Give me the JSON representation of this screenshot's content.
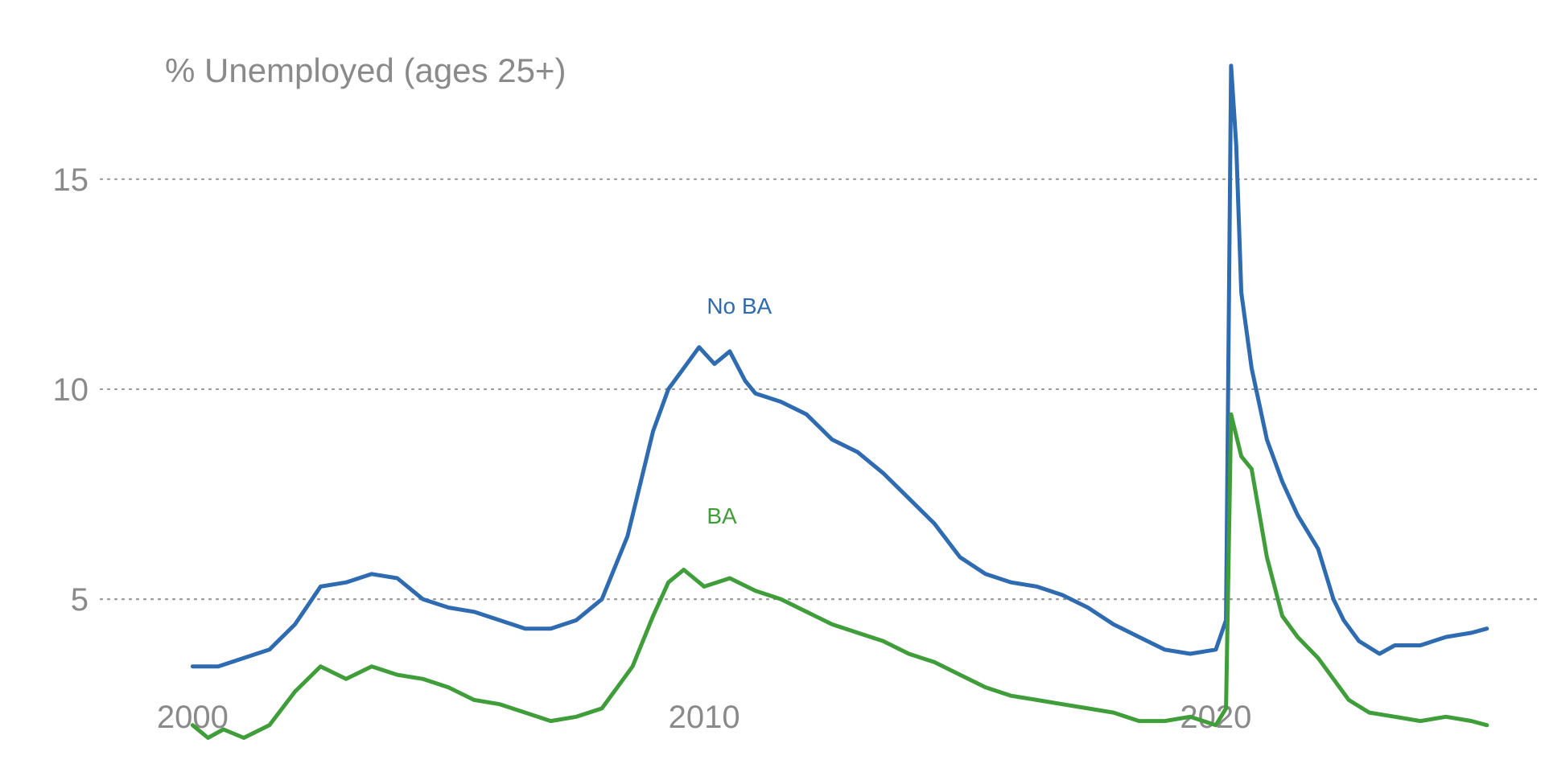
{
  "chart_data": {
    "type": "line",
    "title": "% Unemployed (ages 25+)",
    "xlabel": "",
    "ylabel": "",
    "xlim": [
      1998.2,
      2026.2
    ],
    "ylim": [
      2.8,
      18.5
    ],
    "x_ticks": [
      2000,
      2010,
      2020
    ],
    "y_ticks": [
      5,
      10,
      15
    ],
    "grid": "horizontal dotted",
    "legend": "inline labels",
    "colors": {
      "No BA": "#2e6bb0",
      "BA": "#3f9e3a"
    },
    "annotations": [
      {
        "text": "No BA",
        "series": "No BA"
      },
      {
        "text": "BA",
        "series": "BA"
      }
    ],
    "series": [
      {
        "name": "No BA",
        "color": "#2e6bb0",
        "points": [
          [
            2000.0,
            3.4
          ],
          [
            2000.5,
            3.4
          ],
          [
            2001.0,
            3.6
          ],
          [
            2001.5,
            3.8
          ],
          [
            2002.0,
            4.4
          ],
          [
            2002.5,
            5.3
          ],
          [
            2003.0,
            5.4
          ],
          [
            2003.5,
            5.6
          ],
          [
            2004.0,
            5.5
          ],
          [
            2004.5,
            5.0
          ],
          [
            2005.0,
            4.8
          ],
          [
            2005.5,
            4.7
          ],
          [
            2006.0,
            4.5
          ],
          [
            2006.5,
            4.3
          ],
          [
            2007.0,
            4.3
          ],
          [
            2007.5,
            4.5
          ],
          [
            2008.0,
            5.0
          ],
          [
            2008.5,
            6.5
          ],
          [
            2008.8,
            8.0
          ],
          [
            2009.0,
            9.0
          ],
          [
            2009.3,
            10.0
          ],
          [
            2009.6,
            10.5
          ],
          [
            2009.9,
            11.0
          ],
          [
            2010.2,
            10.6
          ],
          [
            2010.5,
            10.9
          ],
          [
            2010.8,
            10.2
          ],
          [
            2011.0,
            9.9
          ],
          [
            2011.5,
            9.7
          ],
          [
            2012.0,
            9.4
          ],
          [
            2012.5,
            8.8
          ],
          [
            2013.0,
            8.5
          ],
          [
            2013.5,
            8.0
          ],
          [
            2014.0,
            7.4
          ],
          [
            2014.5,
            6.8
          ],
          [
            2015.0,
            6.0
          ],
          [
            2015.5,
            5.6
          ],
          [
            2016.0,
            5.4
          ],
          [
            2016.5,
            5.3
          ],
          [
            2017.0,
            5.1
          ],
          [
            2017.5,
            4.8
          ],
          [
            2018.0,
            4.4
          ],
          [
            2018.5,
            4.1
          ],
          [
            2019.0,
            3.8
          ],
          [
            2019.5,
            3.7
          ],
          [
            2020.0,
            3.8
          ],
          [
            2020.2,
            4.5
          ],
          [
            2020.3,
            17.7
          ],
          [
            2020.4,
            15.8
          ],
          [
            2020.5,
            12.3
          ],
          [
            2020.7,
            10.5
          ],
          [
            2021.0,
            8.8
          ],
          [
            2021.3,
            7.8
          ],
          [
            2021.6,
            7.0
          ],
          [
            2022.0,
            6.2
          ],
          [
            2022.3,
            5.0
          ],
          [
            2022.5,
            4.5
          ],
          [
            2022.8,
            4.0
          ],
          [
            2023.2,
            3.7
          ],
          [
            2023.5,
            3.9
          ],
          [
            2024.0,
            3.9
          ],
          [
            2024.5,
            4.1
          ],
          [
            2025.0,
            4.2
          ],
          [
            2025.3,
            4.3
          ]
        ]
      },
      {
        "name": "BA",
        "color": "#3f9e3a",
        "points": [
          [
            2000.0,
            2.0
          ],
          [
            2000.3,
            1.7
          ],
          [
            2000.6,
            1.9
          ],
          [
            2001.0,
            1.7
          ],
          [
            2001.5,
            2.0
          ],
          [
            2002.0,
            2.8
          ],
          [
            2002.5,
            3.4
          ],
          [
            2003.0,
            3.1
          ],
          [
            2003.5,
            3.4
          ],
          [
            2004.0,
            3.2
          ],
          [
            2004.5,
            3.1
          ],
          [
            2005.0,
            2.9
          ],
          [
            2005.5,
            2.6
          ],
          [
            2006.0,
            2.5
          ],
          [
            2006.5,
            2.3
          ],
          [
            2007.0,
            2.1
          ],
          [
            2007.5,
            2.2
          ],
          [
            2008.0,
            2.4
          ],
          [
            2008.3,
            2.9
          ],
          [
            2008.6,
            3.4
          ],
          [
            2009.0,
            4.6
          ],
          [
            2009.3,
            5.4
          ],
          [
            2009.6,
            5.7
          ],
          [
            2010.0,
            5.3
          ],
          [
            2010.5,
            5.5
          ],
          [
            2011.0,
            5.2
          ],
          [
            2011.5,
            5.0
          ],
          [
            2012.0,
            4.7
          ],
          [
            2012.5,
            4.4
          ],
          [
            2013.0,
            4.2
          ],
          [
            2013.5,
            4.0
          ],
          [
            2014.0,
            3.7
          ],
          [
            2014.5,
            3.5
          ],
          [
            2015.0,
            3.2
          ],
          [
            2015.5,
            2.9
          ],
          [
            2016.0,
            2.7
          ],
          [
            2016.5,
            2.6
          ],
          [
            2017.0,
            2.5
          ],
          [
            2017.5,
            2.4
          ],
          [
            2018.0,
            2.3
          ],
          [
            2018.5,
            2.1
          ],
          [
            2019.0,
            2.1
          ],
          [
            2019.5,
            2.2
          ],
          [
            2020.0,
            2.0
          ],
          [
            2020.2,
            2.4
          ],
          [
            2020.3,
            9.4
          ],
          [
            2020.5,
            8.4
          ],
          [
            2020.7,
            8.1
          ],
          [
            2021.0,
            6.0
          ],
          [
            2021.3,
            4.6
          ],
          [
            2021.6,
            4.1
          ],
          [
            2022.0,
            3.6
          ],
          [
            2022.3,
            3.1
          ],
          [
            2022.6,
            2.6
          ],
          [
            2023.0,
            2.3
          ],
          [
            2023.5,
            2.2
          ],
          [
            2024.0,
            2.1
          ],
          [
            2024.5,
            2.2
          ],
          [
            2025.0,
            2.1
          ],
          [
            2025.3,
            2.0
          ]
        ]
      }
    ]
  }
}
